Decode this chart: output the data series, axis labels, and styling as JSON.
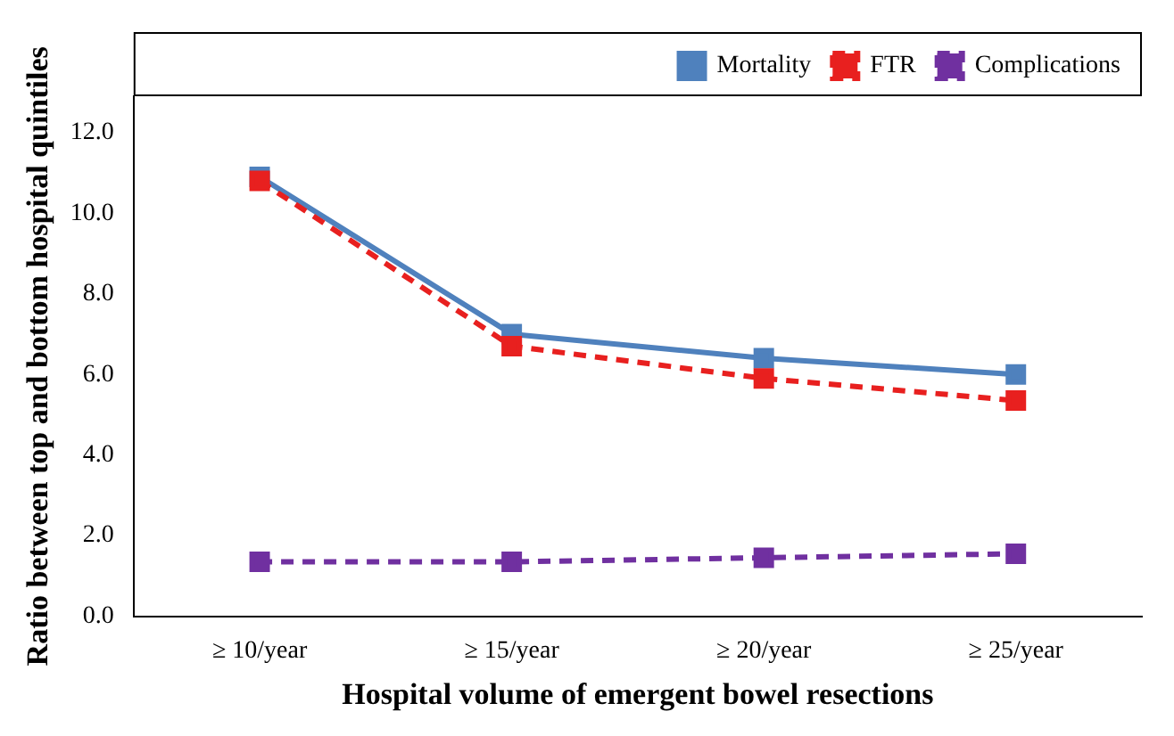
{
  "chart_data": {
    "type": "line",
    "xlabel": "Hospital volume of emergent bowel resections",
    "ylabel": "Ratio between top and bottom hospital quintiles",
    "categories": [
      "≥ 10/year",
      "≥ 15/year",
      "≥ 20/year",
      "≥ 25/year"
    ],
    "series": [
      {
        "name": "Mortality",
        "color": "#4f81bd",
        "values": [
          10.9,
          7.0,
          6.4,
          6.0
        ],
        "line_style": "solid"
      },
      {
        "name": "FTR",
        "color": "#e8201f",
        "values": [
          10.8,
          6.7,
          5.9,
          5.35
        ],
        "line_style": "dashed"
      },
      {
        "name": "Complications",
        "color": "#7030a0",
        "values": [
          1.35,
          1.35,
          1.45,
          1.55
        ],
        "line_style": "dashed"
      }
    ],
    "ylim": [
      0,
      12.9
    ],
    "yticks": [
      {
        "value": 0,
        "label": "0.0"
      },
      {
        "value": 2,
        "label": "2.0"
      },
      {
        "value": 4,
        "label": "4.0"
      },
      {
        "value": 6,
        "label": "6.0"
      },
      {
        "value": 8,
        "label": "8.0"
      },
      {
        "value": 10,
        "label": "10.0"
      },
      {
        "value": 12,
        "label": "12.0"
      }
    ],
    "grid": false,
    "legend": "top right",
    "marker": "square"
  }
}
